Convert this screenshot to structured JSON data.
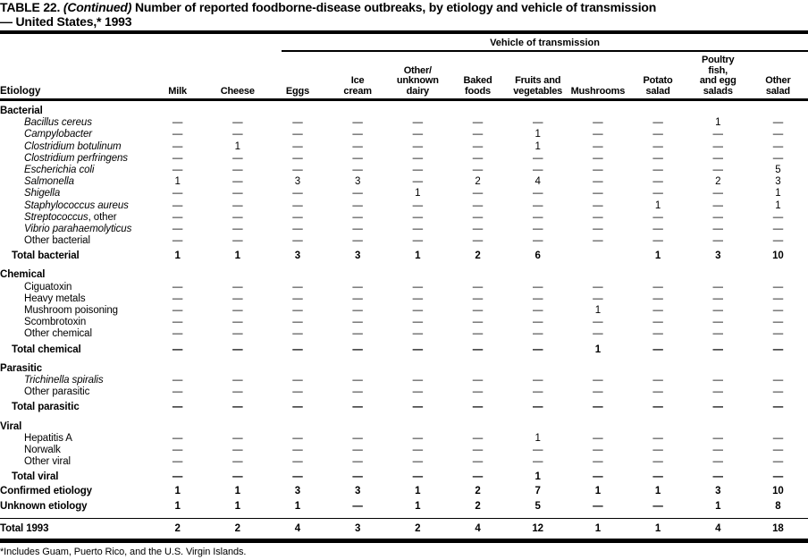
{
  "title": {
    "prefix": "TABLE 22.",
    "continued": "(Continued)",
    "line1_rest": "Number of reported foodborne-disease outbreaks, by etiology and vehicle of transmission",
    "line2": "— United States,* 1993"
  },
  "spanner": "Vehicle of transmission",
  "columns": {
    "etiology": "Etiology",
    "vehicles": [
      "Milk",
      "Cheese",
      "Eggs",
      "Ice\ncream",
      "Other/\nunknown\ndairy",
      "Baked\nfoods",
      "Fruits and\nvegetables",
      "Mushrooms",
      "Potato\nsalad",
      "Poultry\nfish,\nand egg\nsalads",
      "Other\nsalad"
    ]
  },
  "rows": [
    {
      "label": "Bacterial",
      "kind": "section"
    },
    {
      "label": "Bacillus cereus",
      "kind": "species",
      "values": [
        "—",
        "—",
        "—",
        "—",
        "—",
        "—",
        "—",
        "—",
        "—",
        "1",
        "—"
      ]
    },
    {
      "label": "Campylobacter",
      "kind": "species",
      "values": [
        "—",
        "—",
        "—",
        "—",
        "—",
        "—",
        "1",
        "—",
        "—",
        "—",
        "—"
      ]
    },
    {
      "label": "Clostridium botulinum",
      "kind": "species",
      "values": [
        "—",
        "1",
        "—",
        "—",
        "—",
        "—",
        "1",
        "—",
        "—",
        "—",
        "—"
      ]
    },
    {
      "label": "Clostridium perfringens",
      "kind": "species",
      "values": [
        "—",
        "—",
        "—",
        "—",
        "—",
        "—",
        "—",
        "—",
        "—",
        "—",
        "—"
      ]
    },
    {
      "label": "Escherichia coli",
      "kind": "species",
      "values": [
        "—",
        "—",
        "—",
        "—",
        "—",
        "—",
        "—",
        "—",
        "—",
        "—",
        "5"
      ]
    },
    {
      "label": "Salmonella",
      "kind": "species",
      "values": [
        "1",
        "—",
        "3",
        "3",
        "—",
        "2",
        "4",
        "—",
        "—",
        "2",
        "3"
      ]
    },
    {
      "label": "Shigella",
      "kind": "species",
      "values": [
        "—",
        "—",
        "—",
        "—",
        "1",
        "—",
        "—",
        "—",
        "—",
        "—",
        "1"
      ]
    },
    {
      "label": "Staphylococcus aureus",
      "kind": "species",
      "values": [
        "—",
        "—",
        "—",
        "—",
        "—",
        "—",
        "—",
        "—",
        "1",
        "—",
        "1"
      ]
    },
    {
      "label": "Streptococcus",
      "label2": ", other",
      "kind": "species",
      "values": [
        "—",
        "—",
        "—",
        "—",
        "—",
        "—",
        "—",
        "—",
        "—",
        "—",
        "—"
      ]
    },
    {
      "label": "Vibrio parahaemolyticus",
      "kind": "species",
      "values": [
        "—",
        "—",
        "—",
        "—",
        "—",
        "—",
        "—",
        "—",
        "—",
        "—",
        "—"
      ]
    },
    {
      "label": "Other bacterial",
      "kind": "item",
      "values": [
        "—",
        "—",
        "—",
        "—",
        "—",
        "—",
        "—",
        "—",
        "—",
        "—",
        "—"
      ]
    },
    {
      "label": "Total bacterial",
      "kind": "total",
      "values": [
        "1",
        "1",
        "3",
        "3",
        "1",
        "2",
        "6",
        "",
        "1",
        "3",
        "10"
      ]
    },
    {
      "label": "Chemical",
      "kind": "section"
    },
    {
      "label": "Ciguatoxin",
      "kind": "item",
      "values": [
        "—",
        "—",
        "—",
        "—",
        "—",
        "—",
        "—",
        "—",
        "—",
        "—",
        "—"
      ]
    },
    {
      "label": "Heavy metals",
      "kind": "item",
      "values": [
        "—",
        "—",
        "—",
        "—",
        "—",
        "—",
        "—",
        "—",
        "—",
        "—",
        "—"
      ]
    },
    {
      "label": "Mushroom poisoning",
      "kind": "item",
      "values": [
        "—",
        "—",
        "—",
        "—",
        "—",
        "—",
        "—",
        "1",
        "—",
        "—",
        "—"
      ]
    },
    {
      "label": "Scombrotoxin",
      "kind": "item",
      "values": [
        "—",
        "—",
        "—",
        "—",
        "—",
        "—",
        "—",
        "—",
        "—",
        "—",
        "—"
      ]
    },
    {
      "label": "Other chemical",
      "kind": "item",
      "values": [
        "—",
        "—",
        "—",
        "—",
        "—",
        "—",
        "—",
        "—",
        "—",
        "—",
        "—"
      ]
    },
    {
      "label": "Total chemical",
      "kind": "total",
      "values": [
        "—",
        "—",
        "—",
        "—",
        "—",
        "—",
        "—",
        "1",
        "—",
        "—",
        "—"
      ]
    },
    {
      "label": "Parasitic",
      "kind": "section"
    },
    {
      "label": "Trichinella spiralis",
      "kind": "species",
      "values": [
        "—",
        "—",
        "—",
        "—",
        "—",
        "—",
        "—",
        "—",
        "—",
        "—",
        "—"
      ]
    },
    {
      "label": "Other parasitic",
      "kind": "item",
      "values": [
        "—",
        "—",
        "—",
        "—",
        "—",
        "—",
        "—",
        "—",
        "—",
        "—",
        "—"
      ]
    },
    {
      "label": "Total parasitic",
      "kind": "total",
      "values": [
        "—",
        "—",
        "—",
        "—",
        "—",
        "—",
        "—",
        "—",
        "—",
        "—",
        "—"
      ]
    },
    {
      "label": "Viral",
      "kind": "section"
    },
    {
      "label": "Hepatitis A",
      "kind": "item",
      "values": [
        "—",
        "—",
        "—",
        "—",
        "—",
        "—",
        "1",
        "—",
        "—",
        "—",
        "—"
      ]
    },
    {
      "label": "Norwalk",
      "kind": "item",
      "values": [
        "—",
        "—",
        "—",
        "—",
        "—",
        "—",
        "—",
        "—",
        "—",
        "—",
        "—"
      ]
    },
    {
      "label": "Other viral",
      "kind": "item",
      "values": [
        "—",
        "—",
        "—",
        "—",
        "—",
        "—",
        "—",
        "—",
        "—",
        "—",
        "—"
      ]
    },
    {
      "label": "Total viral",
      "kind": "total",
      "values": [
        "—",
        "—",
        "—",
        "—",
        "—",
        "—",
        "1",
        "—",
        "—",
        "—",
        "—"
      ]
    },
    {
      "label": "Confirmed etiology",
      "kind": "summary",
      "values": [
        "1",
        "1",
        "3",
        "3",
        "1",
        "2",
        "7",
        "1",
        "1",
        "3",
        "10"
      ]
    },
    {
      "label": "Unknown etiology",
      "kind": "summary",
      "values": [
        "1",
        "1",
        "1",
        "—",
        "1",
        "2",
        "5",
        "—",
        "—",
        "1",
        "8"
      ]
    },
    {
      "label": "Total 1993",
      "kind": "grand",
      "values": [
        "2",
        "2",
        "4",
        "3",
        "2",
        "4",
        "12",
        "1",
        "1",
        "4",
        "18"
      ]
    }
  ],
  "footnote": "*Includes Guam, Puerto Rico, and the U.S. Virgin Islands."
}
